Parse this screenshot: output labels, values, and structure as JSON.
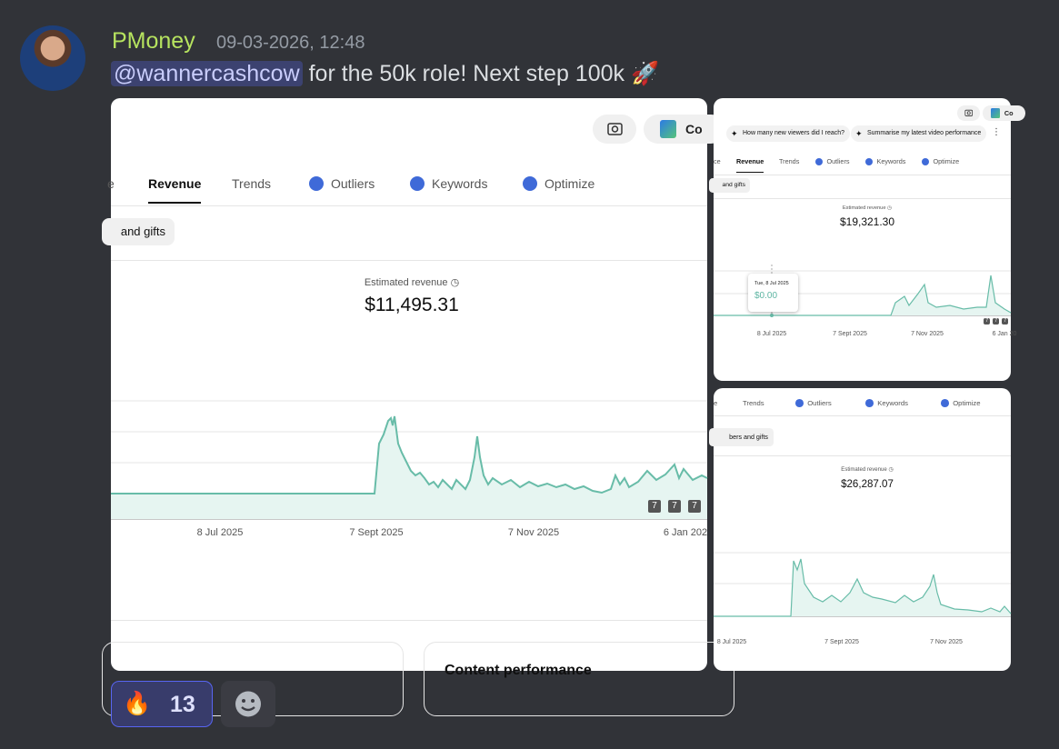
{
  "message": {
    "author": "PMoney",
    "timestamp": "09-03-2026, 12:48",
    "mention": "@wannercashcow",
    "text": "for the 50k role! Next step 100k",
    "emoji": "🚀"
  },
  "images": [
    {
      "buttons": [
        "Co"
      ],
      "tabs": [
        "e",
        "Revenue",
        "Trends",
        "Outliers",
        "Keywords",
        "Optimize"
      ],
      "chip": "and gifts",
      "metric_label": "Estimated revenue",
      "metric_value": "$11,495.31",
      "x_labels": [
        "8 Jul 2025",
        "7 Sept 2025",
        "7 Nov 2025",
        "6 Jan 202"
      ],
      "badges": [
        "7",
        "7",
        "7"
      ],
      "card_title": "Content performance"
    },
    {
      "buttons": [
        "Co"
      ],
      "prompts": [
        "How many new viewers did I reach?",
        "Summarise my latest video performance"
      ],
      "tabs": [
        "ce",
        "Revenue",
        "Trends",
        "Outliers",
        "Keywords",
        "Optimize"
      ],
      "chip": "and gifts",
      "metric_label": "Estimated revenue",
      "metric_value": "$19,321.30",
      "tooltip": {
        "date": "Tue, 8 Jul 2025",
        "value": "$0.00"
      },
      "x_labels": [
        "8 Jul 2025",
        "7 Sept 2025",
        "7 Nov 2025",
        "6 Jan 20"
      ],
      "badges": [
        "7",
        "7",
        "7"
      ]
    },
    {
      "tabs": [
        "e",
        "Trends",
        "Outliers",
        "Keywords",
        "Optimize"
      ],
      "chip": "bers and gifts",
      "metric_label": "Estimated revenue",
      "metric_value": "$26,287.07",
      "x_labels": [
        "8 Jul 2025",
        "7 Sept 2025",
        "7 Nov 2025"
      ]
    }
  ],
  "reactions": [
    {
      "emoji": "🔥",
      "count": 13
    }
  ]
}
